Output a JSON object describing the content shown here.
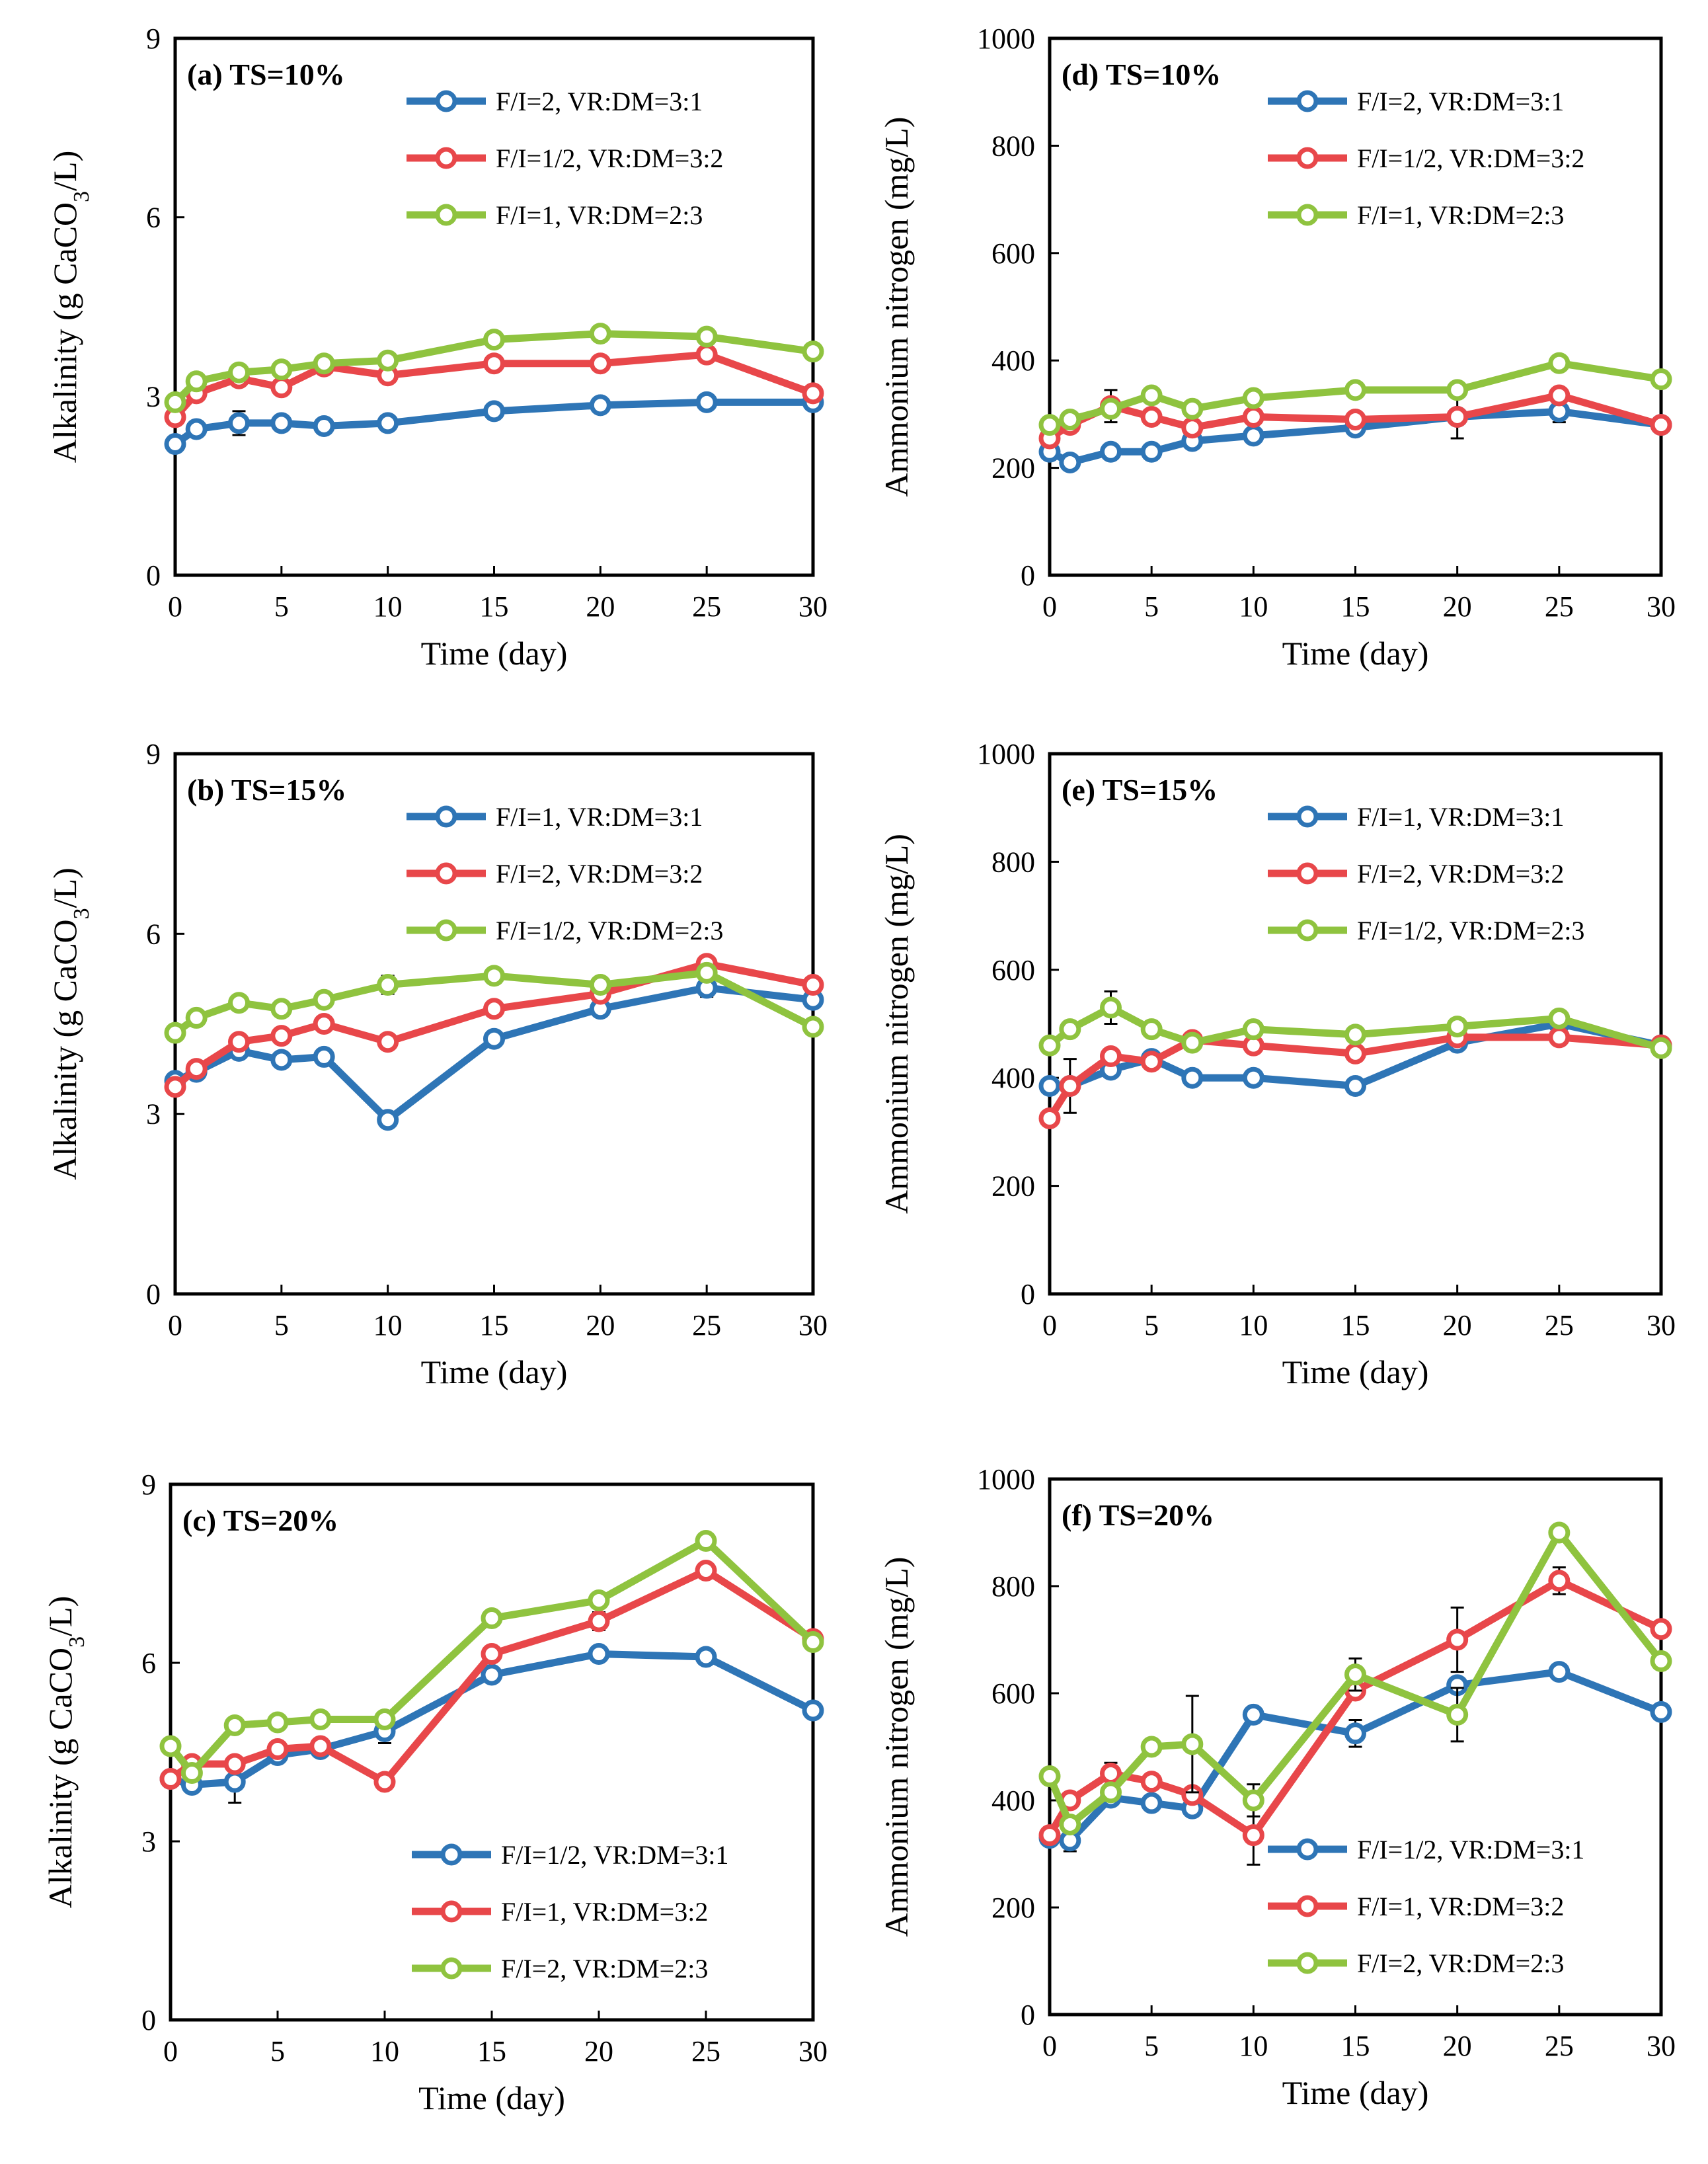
{
  "figure_title": "Alkalinity and ammonium nitrogen over time",
  "colors": {
    "blue": "#2e75b6",
    "red": "#e8474a",
    "green": "#8fc33f",
    "error_bar": "#000000"
  },
  "chart_data": [
    {
      "id": "a",
      "title": "(a) TS=10%",
      "type": "line",
      "xlabel": "Time (day)",
      "ylabel": "Alkalinity (g CaCO3/L)",
      "xlim": [
        0,
        30
      ],
      "ylim": [
        0,
        9
      ],
      "xticks": [
        0,
        5,
        10,
        15,
        20,
        25,
        30
      ],
      "yticks": [
        0,
        3,
        6,
        9
      ],
      "legend_position": "top-right",
      "x": [
        0,
        1,
        3,
        5,
        7,
        10,
        15,
        20,
        25,
        30
      ],
      "series": [
        {
          "name": "F/I=2, VR:DM=3:1",
          "color": "blue",
          "values": [
            2.2,
            2.45,
            2.55,
            2.55,
            2.5,
            2.55,
            2.75,
            2.85,
            2.9,
            2.9
          ],
          "errors": [
            0.05,
            0.05,
            0.2,
            0.05,
            0.05,
            0.05,
            0.05,
            0.05,
            0.05,
            0.05
          ]
        },
        {
          "name": "F/I=1/2, VR:DM=3:2",
          "color": "red",
          "values": [
            2.65,
            3.05,
            3.3,
            3.15,
            3.5,
            3.35,
            3.55,
            3.55,
            3.7,
            3.05
          ],
          "errors": [
            0.05,
            0.05,
            0.1,
            0.05,
            0.05,
            0.05,
            0.05,
            0.05,
            0.05,
            0.05
          ]
        },
        {
          "name": "F/I=1, VR:DM=2:3",
          "color": "green",
          "values": [
            2.9,
            3.25,
            3.4,
            3.45,
            3.55,
            3.6,
            3.95,
            4.05,
            4.0,
            3.75
          ],
          "errors": [
            0.05,
            0.05,
            0.05,
            0.05,
            0.05,
            0.05,
            0.05,
            0.05,
            0.05,
            0.05
          ]
        }
      ]
    },
    {
      "id": "d",
      "title": "(d) TS=10%",
      "type": "line",
      "xlabel": "Time (day)",
      "ylabel": "Ammonium nitrogen (mg/L)",
      "xlim": [
        0,
        30
      ],
      "ylim": [
        0,
        1000
      ],
      "xticks": [
        0,
        5,
        10,
        15,
        20,
        25,
        30
      ],
      "yticks": [
        0,
        200,
        400,
        600,
        800,
        1000
      ],
      "legend_position": "top-right",
      "x": [
        0,
        1,
        3,
        5,
        7,
        10,
        15,
        20,
        25,
        30
      ],
      "series": [
        {
          "name": "F/I=2, VR:DM=3:1",
          "color": "blue",
          "values": [
            230,
            210,
            230,
            230,
            250,
            260,
            275,
            295,
            305,
            280
          ],
          "errors": [
            5,
            10,
            10,
            5,
            5,
            5,
            5,
            5,
            20,
            5
          ]
        },
        {
          "name": "F/I=1/2, VR:DM=3:2",
          "color": "red",
          "values": [
            255,
            280,
            315,
            295,
            275,
            295,
            290,
            295,
            335,
            280
          ],
          "errors": [
            5,
            5,
            30,
            5,
            5,
            5,
            5,
            40,
            5,
            5
          ]
        },
        {
          "name": "F/I=1, VR:DM=2:3",
          "color": "green",
          "values": [
            280,
            290,
            310,
            335,
            310,
            330,
            345,
            345,
            395,
            365
          ],
          "errors": [
            5,
            5,
            5,
            5,
            5,
            5,
            5,
            5,
            5,
            5
          ]
        }
      ]
    },
    {
      "id": "b",
      "title": "(b) TS=15%",
      "type": "line",
      "xlabel": "Time (day)",
      "ylabel": "Alkalinity (g CaCO3/L)",
      "xlim": [
        0,
        30
      ],
      "ylim": [
        0,
        9
      ],
      "xticks": [
        0,
        5,
        10,
        15,
        20,
        25,
        30
      ],
      "yticks": [
        0,
        3,
        6,
        9
      ],
      "legend_position": "top-right",
      "x": [
        0,
        1,
        3,
        5,
        7,
        10,
        15,
        20,
        25,
        30
      ],
      "series": [
        {
          "name": "F/I=1, VR:DM=3:1",
          "color": "blue",
          "values": [
            3.55,
            3.7,
            4.05,
            3.9,
            3.95,
            2.9,
            4.25,
            4.75,
            5.1,
            4.9
          ],
          "errors": [
            0.05,
            0.05,
            0.05,
            0.05,
            0.05,
            0.05,
            0.05,
            0.05,
            0.15,
            0.05
          ]
        },
        {
          "name": "F/I=2, VR:DM=3:2",
          "color": "red",
          "values": [
            3.45,
            3.75,
            4.2,
            4.3,
            4.5,
            4.2,
            4.75,
            5.0,
            5.5,
            5.15
          ],
          "errors": [
            0.05,
            0.05,
            0.1,
            0.05,
            0.05,
            0.05,
            0.05,
            0.05,
            0.05,
            0.05
          ]
        },
        {
          "name": "F/I=1/2, VR:DM=2:3",
          "color": "green",
          "values": [
            4.35,
            4.6,
            4.85,
            4.75,
            4.9,
            5.15,
            5.3,
            5.15,
            5.35,
            4.45
          ],
          "errors": [
            0.05,
            0.05,
            0.05,
            0.05,
            0.05,
            0.15,
            0.05,
            0.05,
            0.05,
            0.05
          ]
        }
      ]
    },
    {
      "id": "e",
      "title": "(e) TS=15%",
      "type": "line",
      "xlabel": "Time (day)",
      "ylabel": "Ammonium nitrogen (mg/L)",
      "xlim": [
        0,
        30
      ],
      "ylim": [
        0,
        1000
      ],
      "xticks": [
        0,
        5,
        10,
        15,
        20,
        25,
        30
      ],
      "yticks": [
        0,
        200,
        400,
        600,
        800,
        1000
      ],
      "legend_position": "top-right",
      "x": [
        0,
        1,
        3,
        5,
        7,
        10,
        15,
        20,
        25,
        30
      ],
      "series": [
        {
          "name": "F/I=1, VR:DM=3:1",
          "color": "blue",
          "values": [
            385,
            385,
            415,
            435,
            400,
            400,
            385,
            465,
            500,
            460
          ],
          "errors": [
            5,
            50,
            10,
            5,
            5,
            5,
            5,
            5,
            5,
            5
          ]
        },
        {
          "name": "F/I=2, VR:DM=3:2",
          "color": "red",
          "values": [
            325,
            385,
            440,
            430,
            470,
            460,
            445,
            475,
            475,
            460
          ],
          "errors": [
            5,
            5,
            5,
            5,
            5,
            5,
            5,
            5,
            5,
            5
          ]
        },
        {
          "name": "F/I=1/2, VR:DM=2:3",
          "color": "green",
          "values": [
            460,
            490,
            530,
            490,
            465,
            490,
            480,
            495,
            510,
            455
          ],
          "errors": [
            5,
            5,
            30,
            5,
            5,
            5,
            5,
            5,
            5,
            5
          ]
        }
      ]
    },
    {
      "id": "c",
      "title": "(c) TS=20%",
      "type": "line",
      "xlabel": "Time (day)",
      "ylabel": "Alkalinity (g CaCO3/L)",
      "xlim": [
        0,
        30
      ],
      "ylim": [
        0,
        9
      ],
      "xticks": [
        0,
        5,
        10,
        15,
        20,
        25,
        30
      ],
      "yticks": [
        0,
        3,
        6,
        9
      ],
      "legend_position": "bottom-right",
      "x": [
        0,
        1,
        3,
        5,
        7,
        10,
        15,
        20,
        25,
        30
      ],
      "series": [
        {
          "name": "F/I=1/2, VR:DM=3:1",
          "color": "blue",
          "values": [
            4.05,
            3.95,
            4.0,
            4.45,
            4.55,
            4.85,
            5.8,
            6.15,
            6.1,
            5.2
          ],
          "errors": [
            0.05,
            0.05,
            0.35,
            0.05,
            0.05,
            0.2,
            0.05,
            0.05,
            0.05,
            0.05
          ]
        },
        {
          "name": "F/I=1, VR:DM=3:2",
          "color": "red",
          "values": [
            4.05,
            4.3,
            4.3,
            4.55,
            4.6,
            4.0,
            6.15,
            6.7,
            7.55,
            6.4
          ],
          "errors": [
            0.05,
            0.05,
            0.05,
            0.05,
            0.05,
            0.1,
            0.05,
            0.15,
            0.05,
            0.05
          ]
        },
        {
          "name": "F/I=2, VR:DM=2:3",
          "color": "green",
          "values": [
            4.6,
            4.15,
            4.95,
            5.0,
            5.05,
            5.05,
            6.75,
            7.05,
            8.05,
            6.35
          ],
          "errors": [
            0.05,
            0.05,
            0.05,
            0.05,
            0.05,
            0.05,
            0.05,
            0.05,
            0.05,
            0.05
          ]
        }
      ]
    },
    {
      "id": "f",
      "title": "(f) TS=20%",
      "type": "line",
      "xlabel": "Time (day)",
      "ylabel": "Ammonium nitrogen (mg/L)",
      "xlim": [
        0,
        30
      ],
      "ylim": [
        0,
        1000
      ],
      "xticks": [
        0,
        5,
        10,
        15,
        20,
        25,
        30
      ],
      "yticks": [
        0,
        200,
        400,
        600,
        800,
        1000
      ],
      "legend_position": "bottom-right",
      "x": [
        0,
        1,
        3,
        5,
        7,
        10,
        15,
        20,
        25,
        30
      ],
      "series": [
        {
          "name": "F/I=1/2, VR:DM=3:1",
          "color": "blue",
          "values": [
            330,
            325,
            405,
            395,
            385,
            560,
            525,
            615,
            640,
            565
          ],
          "errors": [
            5,
            20,
            5,
            5,
            5,
            5,
            25,
            5,
            5,
            5
          ]
        },
        {
          "name": "F/I=1, VR:DM=3:2",
          "color": "red",
          "values": [
            335,
            400,
            450,
            435,
            410,
            335,
            605,
            700,
            810,
            720
          ],
          "errors": [
            5,
            5,
            20,
            5,
            5,
            55,
            5,
            60,
            25,
            5
          ]
        },
        {
          "name": "F/I=2, VR:DM=2:3",
          "color": "green",
          "values": [
            445,
            355,
            415,
            500,
            505,
            400,
            635,
            560,
            900,
            660
          ],
          "errors": [
            5,
            5,
            5,
            5,
            90,
            30,
            30,
            50,
            5,
            5
          ]
        }
      ]
    }
  ]
}
